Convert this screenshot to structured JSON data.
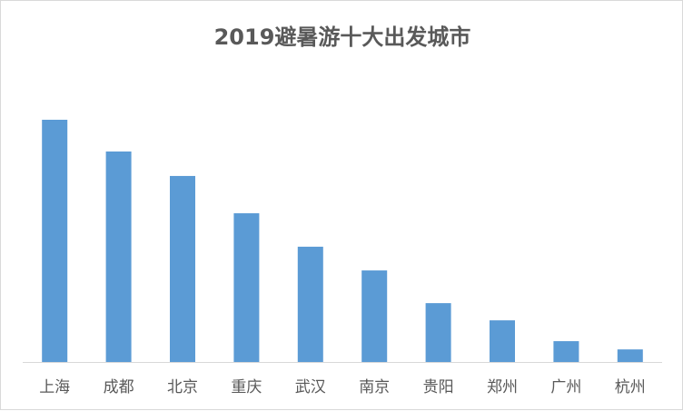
{
  "chart_data": {
    "type": "bar",
    "title": "2019避暑游十大出发城市",
    "categories": [
      "上海",
      "成都",
      "北京",
      "重庆",
      "武汉",
      "南京",
      "贵阳",
      "郑州",
      "广州",
      "杭州"
    ],
    "values": [
      100,
      86.9,
      76.8,
      61.4,
      47.6,
      37.8,
      24.3,
      17.2,
      8.6,
      5.2
    ],
    "xlabel": "",
    "ylabel": "",
    "ylim": [
      0,
      100
    ],
    "y_axis_shown": false,
    "grid": false,
    "legend": "none",
    "bar_color": "#5b9bd5"
  }
}
